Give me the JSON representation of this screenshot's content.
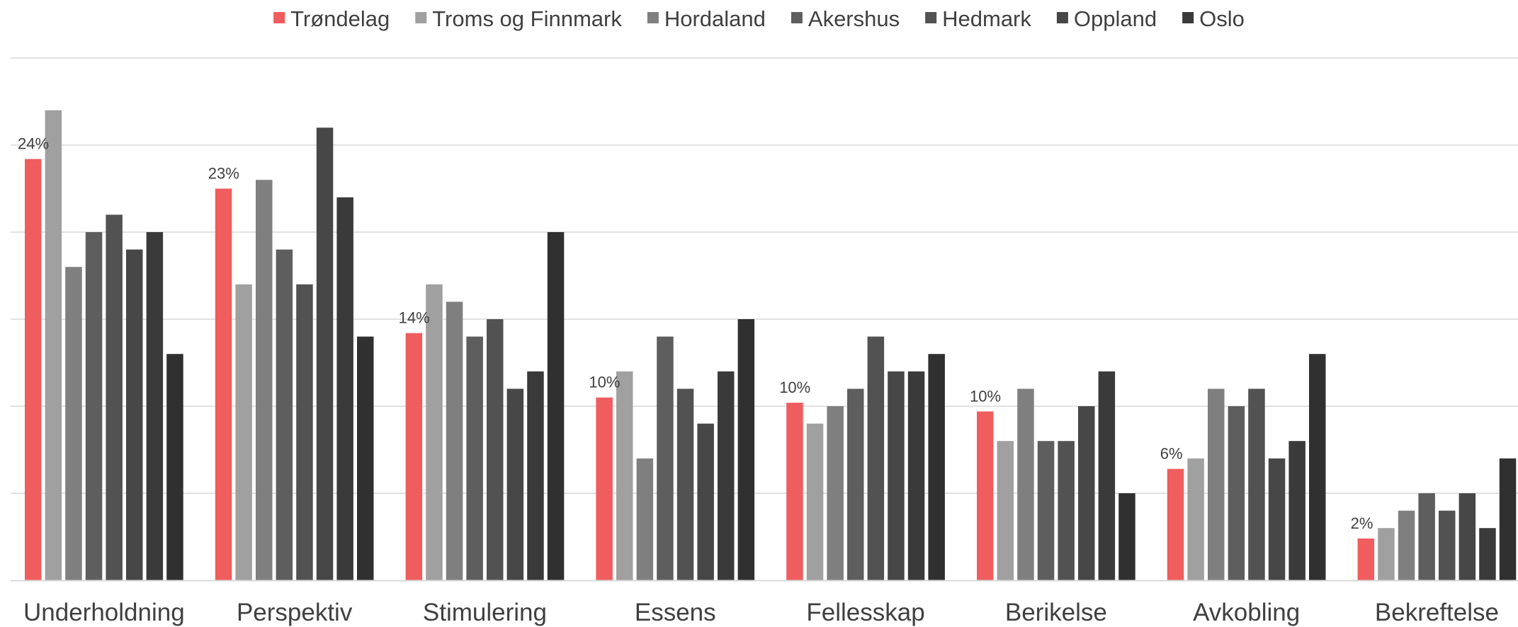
{
  "chart_data": {
    "type": "bar",
    "categories": [
      "Underholdning",
      "Perspektiv",
      "Stimulering",
      "Essens",
      "Fellesskap",
      "Berikelse",
      "Avkobling",
      "Bekreftelse"
    ],
    "ylim": [
      0,
      30
    ],
    "grid": true,
    "legend_position": "top",
    "series": [
      {
        "name": "Trøndelag",
        "color": "#f05d5e",
        "values": [
          24.2,
          22.5,
          14.2,
          10.5,
          10.2,
          9.7,
          6.4,
          2.4
        ],
        "labels": [
          "24%",
          "23%",
          "14%",
          "10%",
          "10%",
          "10%",
          "6%",
          "2%"
        ]
      },
      {
        "name": "Troms og Finnmark",
        "color": "#a0a0a0",
        "values": [
          27,
          17,
          17,
          12,
          9,
          8,
          7,
          3
        ]
      },
      {
        "name": "Hordaland",
        "color": "#7f7f7f",
        "values": [
          18,
          23,
          16,
          7,
          10,
          11,
          11,
          4
        ]
      },
      {
        "name": "Akershus",
        "color": "#5e5e5e",
        "values": [
          20,
          19,
          14,
          14,
          11,
          8,
          10,
          5
        ]
      },
      {
        "name": "Hedmark",
        "color": "#525252",
        "values": [
          21,
          17,
          15,
          11,
          14,
          8,
          11,
          4
        ]
      },
      {
        "name": "Oppland",
        "color": "#474747",
        "values": [
          19,
          26,
          11,
          9,
          12,
          10,
          7,
          5
        ]
      },
      {
        "name": "Oslo",
        "color": "#3a3a3a",
        "values": [
          20,
          22,
          12,
          12,
          12,
          12,
          8,
          3
        ]
      },
      {
        "name": "",
        "color": "#303030",
        "values": [
          13,
          14,
          20,
          15,
          13,
          5,
          13,
          7
        ]
      }
    ]
  }
}
